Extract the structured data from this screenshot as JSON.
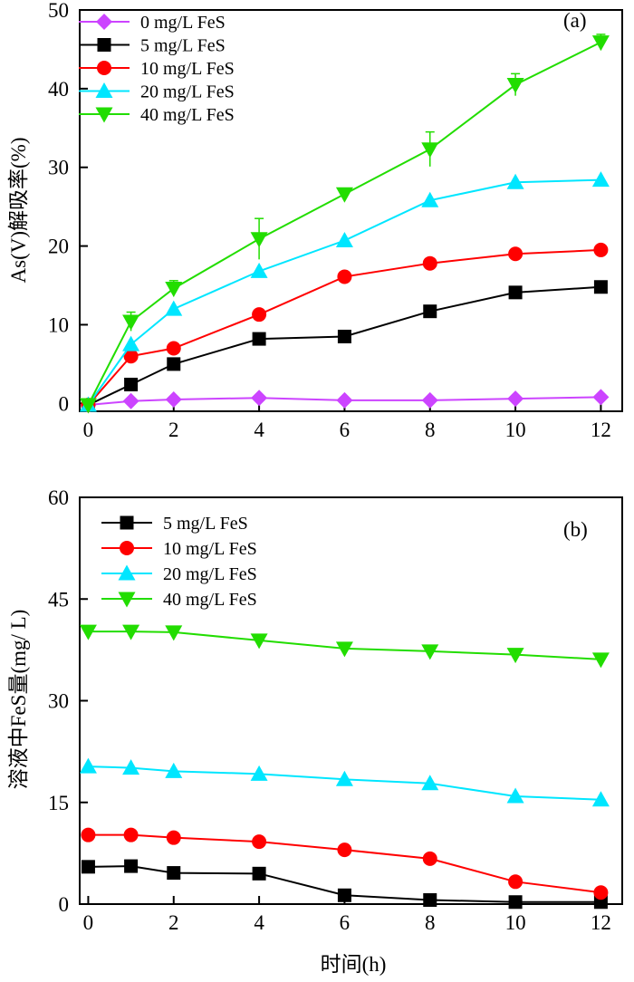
{
  "colors": {
    "FeS0": "#cc44ff",
    "FeS5": "#000000",
    "FeS10": "#ff0000",
    "FeS20": "#00e6ff",
    "FeS40": "#22dd00"
  },
  "chart_data": [
    {
      "type": "line",
      "panel_label": "(a)",
      "ylabel": "As(V)解吸率(%)",
      "xlabel": "",
      "x": [
        0,
        1,
        2,
        4,
        6,
        8,
        10,
        12
      ],
      "xlim": [
        -0.2,
        12.5
      ],
      "ylim": [
        -1,
        50
      ],
      "xticks": [
        "0",
        "2",
        "4",
        "6",
        "8",
        "10",
        "12"
      ],
      "yticks": [
        "0",
        "10",
        "20",
        "30",
        "40",
        "50"
      ],
      "legend_position": "top-left",
      "series": [
        {
          "name": "0 mg/L FeS",
          "marker": "diamond",
          "color_key": "FeS0",
          "values": [
            -0.2,
            0.3,
            0.5,
            0.7,
            0.4,
            0.4,
            0.6,
            0.8
          ]
        },
        {
          "name": "5 mg/L FeS",
          "marker": "square",
          "color_key": "FeS5",
          "values": [
            -0.2,
            2.4,
            5.0,
            8.2,
            8.5,
            11.7,
            14.1,
            14.8
          ]
        },
        {
          "name": "10 mg/L FeS",
          "marker": "circle",
          "color_key": "FeS10",
          "values": [
            -0.2,
            6.0,
            7.0,
            11.3,
            16.1,
            17.8,
            19.0,
            19.5
          ]
        },
        {
          "name": "20 mg/L FeS",
          "marker": "triangle-up",
          "color_key": "FeS20",
          "values": [
            -0.2,
            7.5,
            12.0,
            16.8,
            20.7,
            25.8,
            28.1,
            28.4
          ]
        },
        {
          "name": "40 mg/L FeS",
          "marker": "triangle-down",
          "color_key": "FeS40",
          "values": [
            -0.2,
            10.4,
            14.6,
            20.9,
            26.6,
            32.3,
            40.5,
            45.9
          ],
          "errors": [
            0,
            1.2,
            1.0,
            2.6,
            0.7,
            2.2,
            1.4,
            1.0
          ]
        }
      ]
    },
    {
      "type": "line",
      "panel_label": "(b)",
      "ylabel": "溶液中FeS量(mg/ L)",
      "xlabel": "时间(h)",
      "x": [
        0,
        1,
        2,
        4,
        6,
        8,
        10,
        12
      ],
      "xlim": [
        -0.2,
        12.5
      ],
      "ylim": [
        0,
        60
      ],
      "xticks": [
        "0",
        "2",
        "4",
        "6",
        "8",
        "10",
        "12"
      ],
      "yticks": [
        "0",
        "15",
        "30",
        "45",
        "60"
      ],
      "legend_position": "top-left",
      "series": [
        {
          "name": "5 mg/L FeS",
          "marker": "square",
          "color_key": "FeS5",
          "values": [
            5.5,
            5.6,
            4.6,
            4.5,
            1.3,
            0.6,
            0.3,
            0.3
          ]
        },
        {
          "name": "10 mg/L FeS",
          "marker": "circle",
          "color_key": "FeS10",
          "values": [
            10.2,
            10.2,
            9.8,
            9.2,
            8.0,
            6.7,
            3.3,
            1.7
          ]
        },
        {
          "name": "20 mg/L FeS",
          "marker": "triangle-up",
          "color_key": "FeS20",
          "values": [
            20.3,
            20.1,
            19.6,
            19.2,
            18.4,
            17.8,
            15.9,
            15.4
          ]
        },
        {
          "name": "40 mg/L FeS",
          "marker": "triangle-down",
          "color_key": "FeS40",
          "values": [
            40.2,
            40.2,
            40.1,
            38.9,
            37.7,
            37.3,
            36.8,
            36.1
          ]
        }
      ]
    }
  ]
}
